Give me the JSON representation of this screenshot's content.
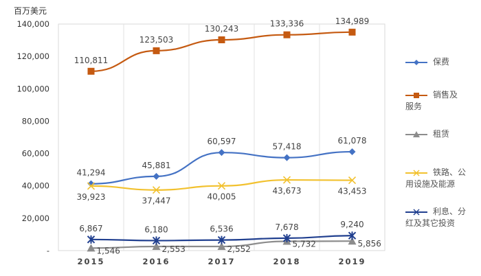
{
  "chart_data": {
    "type": "line",
    "ylabel": "百万美元",
    "categories": [
      "2015",
      "2016",
      "2017",
      "2018",
      "2019"
    ],
    "ylim": [
      0,
      140000
    ],
    "yticks": [
      "-",
      "20,000",
      "40,000",
      "60,000",
      "80,000",
      "100,000",
      "120,000",
      "140,000"
    ],
    "grid": "vertical",
    "legend": "right",
    "series": [
      {
        "name": "保费",
        "color": "#4472C4",
        "marker": "diamond",
        "values": [
          41294,
          45881,
          60597,
          57418,
          61078
        ],
        "labels": [
          "41,294",
          "45,881",
          "60,597",
          "57,418",
          "61,078"
        ],
        "label_pos": "above"
      },
      {
        "name": "销售及服务",
        "color": "#C55A11",
        "marker": "square",
        "values": [
          110811,
          123503,
          130243,
          133336,
          134989
        ],
        "labels": [
          "110,811",
          "123,503",
          "130,243",
          "133,336",
          "134,989"
        ],
        "label_pos": "above"
      },
      {
        "name": "租赁",
        "color": "#8C8C8C",
        "marker": "triangle",
        "values": [
          1546,
          2553,
          2552,
          5732,
          5856
        ],
        "labels": [
          "1,546",
          "2,553",
          "2,552",
          "5,732",
          "5,856"
        ],
        "label_pos": "right"
      },
      {
        "name": "铁路、公用设施及能源",
        "color": "#F2C12E",
        "marker": "x",
        "values": [
          39923,
          37447,
          40005,
          43673,
          43453
        ],
        "labels": [
          "39,923",
          "37,447",
          "40,005",
          "43,673",
          "43,453"
        ],
        "label_pos": "below"
      },
      {
        "name": "利息、分红及其它投资",
        "color": "#203F8F",
        "marker": "star",
        "values": [
          6867,
          6180,
          6536,
          7678,
          9240
        ],
        "labels": [
          "6,867",
          "6,180",
          "6,536",
          "7,678",
          "9,240"
        ],
        "label_pos": "above"
      }
    ]
  }
}
